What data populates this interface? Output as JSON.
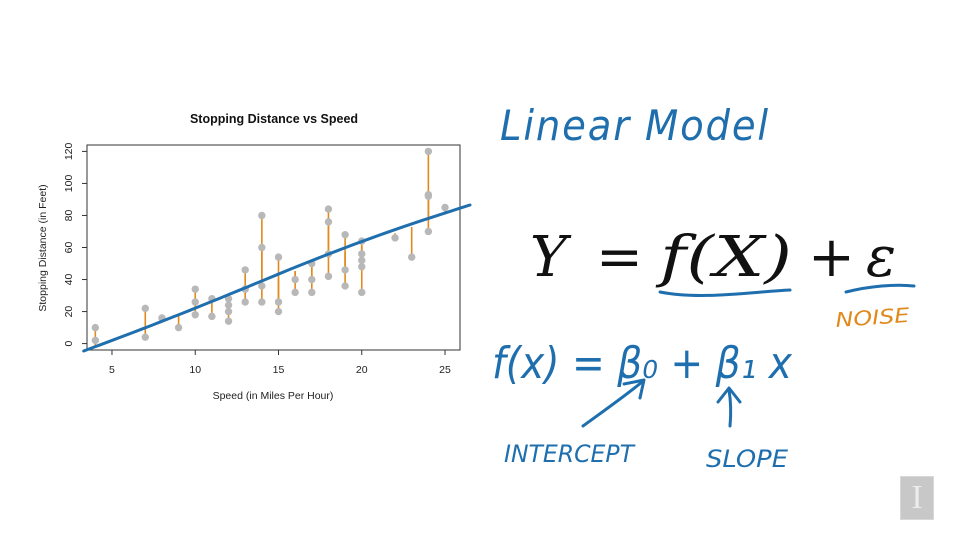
{
  "chart_data": {
    "type": "scatter",
    "title": "Stopping Distance vs Speed",
    "xlabel": "Speed (in Miles Per Hour)",
    "ylabel": "Stopping Distance (in Feet)",
    "xlim": [
      3.5,
      25.9
    ],
    "ylim": [
      -4,
      124
    ],
    "xticks": [
      5,
      10,
      15,
      20,
      25
    ],
    "yticks": [
      0,
      20,
      40,
      60,
      80,
      100,
      120
    ],
    "grid": false,
    "points_x": [
      4,
      4,
      7,
      7,
      8,
      9,
      10,
      10,
      10,
      11,
      11,
      12,
      12,
      12,
      12,
      13,
      13,
      13,
      13,
      14,
      14,
      14,
      14,
      15,
      15,
      15,
      16,
      16,
      17,
      17,
      17,
      18,
      18,
      18,
      18,
      19,
      19,
      19,
      20,
      20,
      20,
      20,
      20,
      22,
      23,
      24,
      24,
      24,
      24,
      25
    ],
    "points_y": [
      2,
      10,
      4,
      22,
      16,
      10,
      18,
      26,
      34,
      17,
      28,
      14,
      20,
      24,
      28,
      26,
      34,
      34,
      46,
      26,
      36,
      60,
      80,
      20,
      26,
      54,
      32,
      40,
      32,
      40,
      50,
      42,
      56,
      76,
      84,
      36,
      46,
      68,
      32,
      48,
      52,
      56,
      64,
      66,
      54,
      70,
      92,
      93,
      120,
      85
    ],
    "fit": {
      "intercept": -17.58,
      "slope": 3.93,
      "x_range": [
        3.3,
        26.5
      ]
    },
    "colors": {
      "points": "#b8b8b8",
      "residuals": "#e08a1e",
      "fit_line": "#1f6fae"
    }
  },
  "notes": {
    "heading": "Linear Model",
    "equation": {
      "lhs": "Y",
      "equals": "=",
      "func": "f(X)",
      "plus": "+",
      "epsilon": "ε"
    },
    "noise_label": "NOISE",
    "model_formula": "f(x) = β₀ + β₁ x",
    "intercept_label": "INTERCEPT",
    "slope_label": "SLOPE",
    "ink_color": "#1f6fae",
    "noise_color": "#e08a1e"
  },
  "branding": {
    "logo_letter": "I"
  }
}
